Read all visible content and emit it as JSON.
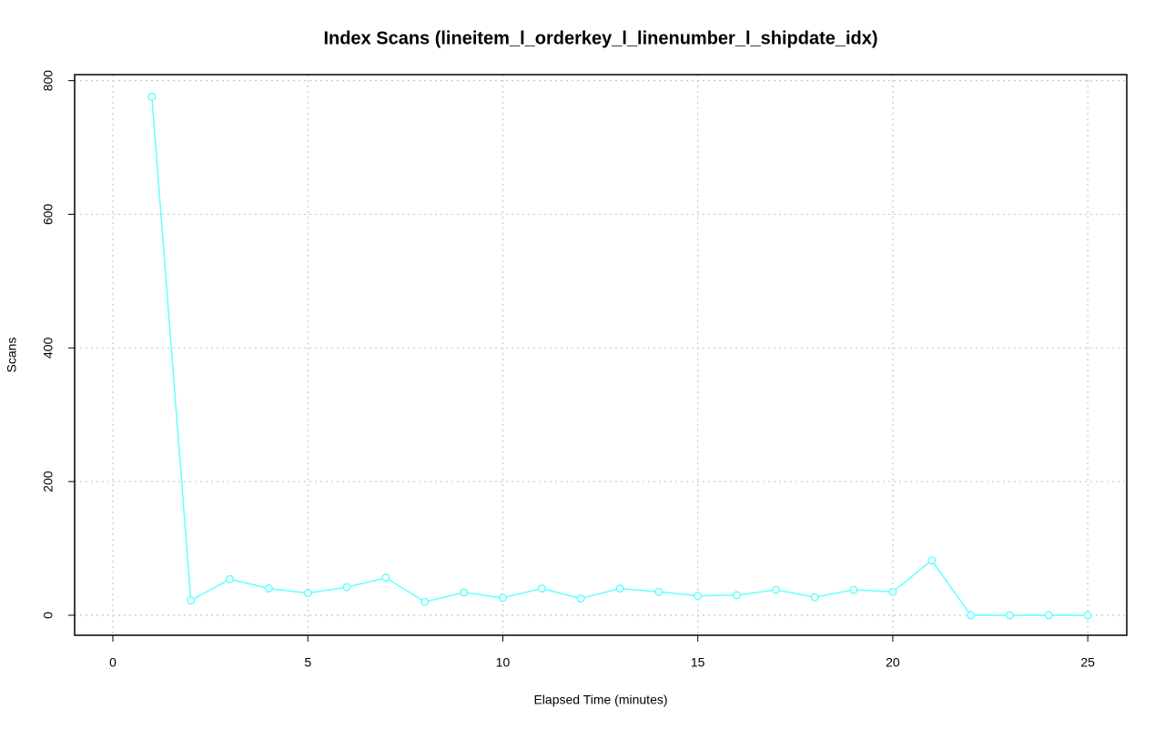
{
  "chart_data": {
    "type": "line",
    "title": "Index Scans (lineitem_l_orderkey_l_linenumber_l_shipdate_idx)",
    "x_label": "Elapsed Time (minutes)",
    "y_label": "Scans",
    "x": [
      1,
      2,
      3,
      4,
      5,
      6,
      7,
      8,
      9,
      10,
      11,
      12,
      13,
      14,
      15,
      16,
      17,
      18,
      19,
      20,
      21,
      22,
      23,
      24,
      25
    ],
    "series": [
      {
        "name": "Scans",
        "color": "#66ffff",
        "values": [
          776,
          22,
          54,
          40,
          33,
          42,
          56,
          20,
          34,
          26,
          40,
          25,
          40,
          35,
          29,
          30,
          38,
          27,
          38,
          35,
          82,
          0,
          0,
          0,
          0
        ]
      }
    ],
    "xlim": [
      -0.98,
      26
    ],
    "ylim": [
      -30,
      809
    ],
    "xticks": [
      0,
      5,
      10,
      15,
      20,
      25
    ],
    "yticks": [
      0,
      200,
      400,
      600,
      800
    ],
    "grid": true
  }
}
